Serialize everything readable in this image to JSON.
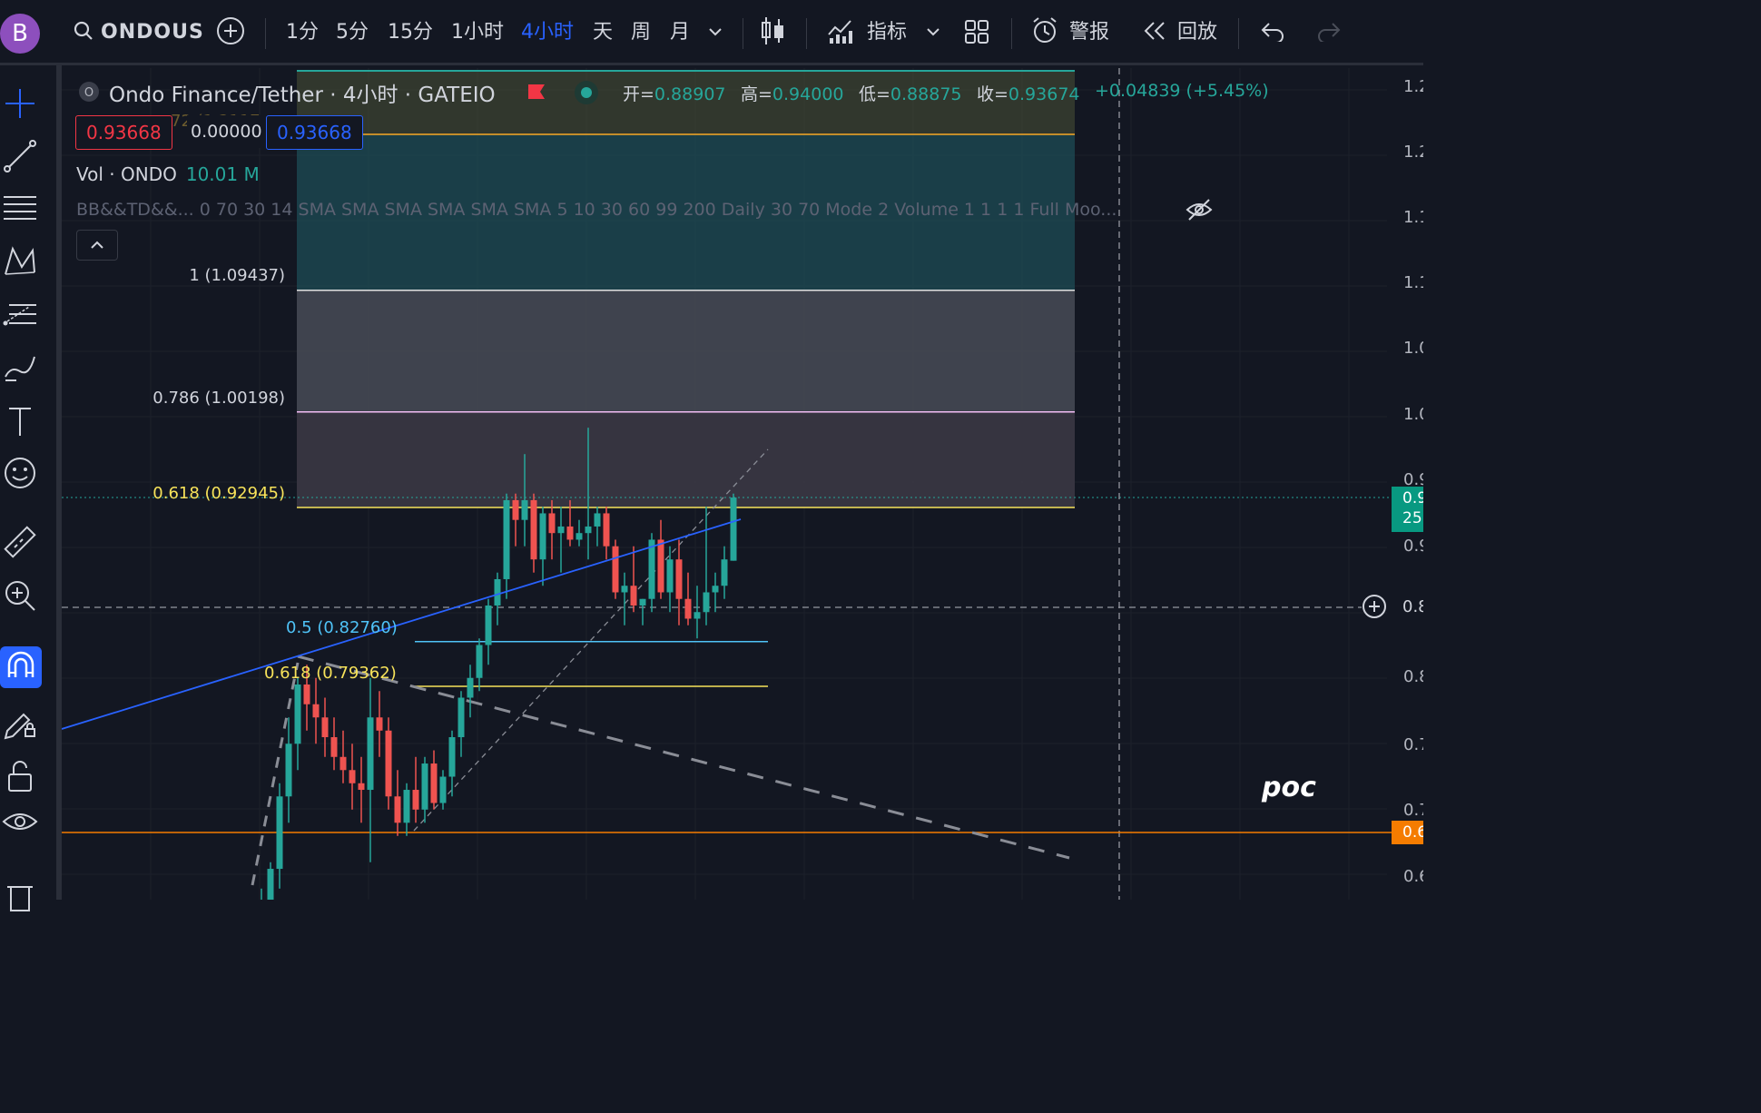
{
  "topbar": {
    "avatar_letter": "B",
    "symbol": "ONDOUS",
    "timeframes": [
      "1分",
      "5分",
      "15分",
      "1小时",
      "4小时",
      "天",
      "周",
      "月"
    ],
    "active_timeframe": "4小时",
    "indicators_label": "指标",
    "alert_label": "警报",
    "replay_label": "回放"
  },
  "legend": {
    "title": "Ondo Finance/Tether · 4小时 · GATEIO",
    "symbol_badge": "O",
    "open_label": "开=",
    "open": "0.88907",
    "high_label": "高=",
    "high": "0.94000",
    "low_label": "低=",
    "low": "0.88875",
    "close_label": "收=",
    "close": "0.93674",
    "change": "+0.04839 (+5.45%)",
    "bid": "0.93668",
    "spread": "0.00000",
    "ask": "0.93668",
    "hidden_fragment": "72 (1.2117",
    "volume_label": "Vol · ONDO",
    "volume_value": "10.01 M",
    "indicators_text": "BB&&TD&&... 0 70 30 14 SMA SMA SMA SMA SMA SMA 5 10 30 60 99 200 Daily 30 70 Mode 2 Volume 1 1 1 1 Full Moo...",
    "collapse_icon": "chevron-up-icon"
  },
  "fib_upper": {
    "levels": [
      {
        "label": "1 (1.09437)",
        "color": "#d1d4dc"
      },
      {
        "label": "0.786 (1.00198)",
        "color": "#d1d4dc"
      },
      {
        "label": "0.618 (0.92945)",
        "color": "#f7e35a"
      }
    ]
  },
  "fib_lower": {
    "levels": [
      {
        "label": "0.5 (0.82760)",
        "color": "#4fc3f7"
      },
      {
        "label": "0.618 (0.79362)",
        "color": "#f7e35a"
      }
    ]
  },
  "price_axis": {
    "labels": [
      "1.2",
      "1.2",
      "1.1",
      "1.1",
      "1.0",
      "1.0",
      "0.9",
      "0.9",
      "0.8",
      "0.8",
      "0.7",
      "0.7",
      "0.6"
    ],
    "current_price_tag_top": "0.9",
    "current_price_tag_bottom": "25",
    "crosshair_price": "0.8",
    "orange_line_tag": "0.6"
  },
  "chart_data": {
    "type": "candlestick",
    "colors": {
      "up": "#26a69a",
      "down": "#ef5350",
      "trendline": "#2962ff",
      "horizontal": "#f57c00"
    },
    "candles": [
      {
        "o": 0.58,
        "h": 0.62,
        "l": 0.56,
        "c": 0.61
      },
      {
        "o": 0.61,
        "h": 0.64,
        "l": 0.58,
        "c": 0.63
      },
      {
        "o": 0.63,
        "h": 0.66,
        "l": 0.6,
        "c": 0.655
      },
      {
        "o": 0.655,
        "h": 0.72,
        "l": 0.64,
        "c": 0.71
      },
      {
        "o": 0.71,
        "h": 0.77,
        "l": 0.69,
        "c": 0.75
      },
      {
        "o": 0.75,
        "h": 0.8,
        "l": 0.73,
        "c": 0.795
      },
      {
        "o": 0.795,
        "h": 0.81,
        "l": 0.76,
        "c": 0.78
      },
      {
        "o": 0.78,
        "h": 0.8,
        "l": 0.75,
        "c": 0.77
      },
      {
        "o": 0.77,
        "h": 0.785,
        "l": 0.74,
        "c": 0.755
      },
      {
        "o": 0.755,
        "h": 0.77,
        "l": 0.73,
        "c": 0.74
      },
      {
        "o": 0.74,
        "h": 0.76,
        "l": 0.72,
        "c": 0.73
      },
      {
        "o": 0.73,
        "h": 0.75,
        "l": 0.7,
        "c": 0.72
      },
      {
        "o": 0.72,
        "h": 0.74,
        "l": 0.69,
        "c": 0.715
      },
      {
        "o": 0.715,
        "h": 0.8,
        "l": 0.66,
        "c": 0.77
      },
      {
        "o": 0.77,
        "h": 0.79,
        "l": 0.74,
        "c": 0.76
      },
      {
        "o": 0.76,
        "h": 0.77,
        "l": 0.7,
        "c": 0.71
      },
      {
        "o": 0.71,
        "h": 0.73,
        "l": 0.68,
        "c": 0.69
      },
      {
        "o": 0.69,
        "h": 0.72,
        "l": 0.68,
        "c": 0.715
      },
      {
        "o": 0.715,
        "h": 0.74,
        "l": 0.69,
        "c": 0.7
      },
      {
        "o": 0.7,
        "h": 0.74,
        "l": 0.69,
        "c": 0.735
      },
      {
        "o": 0.735,
        "h": 0.745,
        "l": 0.7,
        "c": 0.705
      },
      {
        "o": 0.705,
        "h": 0.73,
        "l": 0.7,
        "c": 0.725
      },
      {
        "o": 0.725,
        "h": 0.76,
        "l": 0.71,
        "c": 0.755
      },
      {
        "o": 0.755,
        "h": 0.79,
        "l": 0.74,
        "c": 0.785
      },
      {
        "o": 0.785,
        "h": 0.81,
        "l": 0.77,
        "c": 0.8
      },
      {
        "o": 0.8,
        "h": 0.83,
        "l": 0.79,
        "c": 0.825
      },
      {
        "o": 0.825,
        "h": 0.86,
        "l": 0.81,
        "c": 0.855
      },
      {
        "o": 0.855,
        "h": 0.88,
        "l": 0.84,
        "c": 0.875
      },
      {
        "o": 0.875,
        "h": 0.94,
        "l": 0.86,
        "c": 0.935
      },
      {
        "o": 0.935,
        "h": 0.94,
        "l": 0.9,
        "c": 0.92
      },
      {
        "o": 0.92,
        "h": 0.97,
        "l": 0.9,
        "c": 0.935
      },
      {
        "o": 0.935,
        "h": 0.94,
        "l": 0.88,
        "c": 0.89
      },
      {
        "o": 0.89,
        "h": 0.93,
        "l": 0.87,
        "c": 0.925
      },
      {
        "o": 0.925,
        "h": 0.935,
        "l": 0.89,
        "c": 0.91
      },
      {
        "o": 0.91,
        "h": 0.93,
        "l": 0.88,
        "c": 0.915
      },
      {
        "o": 0.915,
        "h": 0.935,
        "l": 0.9,
        "c": 0.905
      },
      {
        "o": 0.905,
        "h": 0.92,
        "l": 0.9,
        "c": 0.91
      },
      {
        "o": 0.91,
        "h": 0.99,
        "l": 0.89,
        "c": 0.915
      },
      {
        "o": 0.915,
        "h": 0.93,
        "l": 0.9,
        "c": 0.925
      },
      {
        "o": 0.925,
        "h": 0.93,
        "l": 0.89,
        "c": 0.9
      },
      {
        "o": 0.9,
        "h": 0.905,
        "l": 0.86,
        "c": 0.865
      },
      {
        "o": 0.865,
        "h": 0.88,
        "l": 0.84,
        "c": 0.87
      },
      {
        "o": 0.87,
        "h": 0.9,
        "l": 0.85,
        "c": 0.855
      },
      {
        "o": 0.855,
        "h": 0.86,
        "l": 0.84,
        "c": 0.86
      },
      {
        "o": 0.86,
        "h": 0.91,
        "l": 0.85,
        "c": 0.905
      },
      {
        "o": 0.905,
        "h": 0.92,
        "l": 0.86,
        "c": 0.865
      },
      {
        "o": 0.865,
        "h": 0.9,
        "l": 0.85,
        "c": 0.89
      },
      {
        "o": 0.89,
        "h": 0.905,
        "l": 0.84,
        "c": 0.86
      },
      {
        "o": 0.86,
        "h": 0.88,
        "l": 0.84,
        "c": 0.845
      },
      {
        "o": 0.845,
        "h": 0.87,
        "l": 0.83,
        "c": 0.85
      },
      {
        "o": 0.85,
        "h": 0.93,
        "l": 0.84,
        "c": 0.865
      },
      {
        "o": 0.865,
        "h": 0.88,
        "l": 0.85,
        "c": 0.87
      },
      {
        "o": 0.87,
        "h": 0.9,
        "l": 0.86,
        "c": 0.89
      },
      {
        "o": 0.889,
        "h": 0.94,
        "l": 0.889,
        "c": 0.937
      }
    ],
    "fib_upper_prices": [
      1.09437,
      1.00198,
      0.92945
    ],
    "fib_lower_prices": [
      0.8276,
      0.79362
    ],
    "orange_line_price": 0.66,
    "crosshair_price": 0.85
  }
}
